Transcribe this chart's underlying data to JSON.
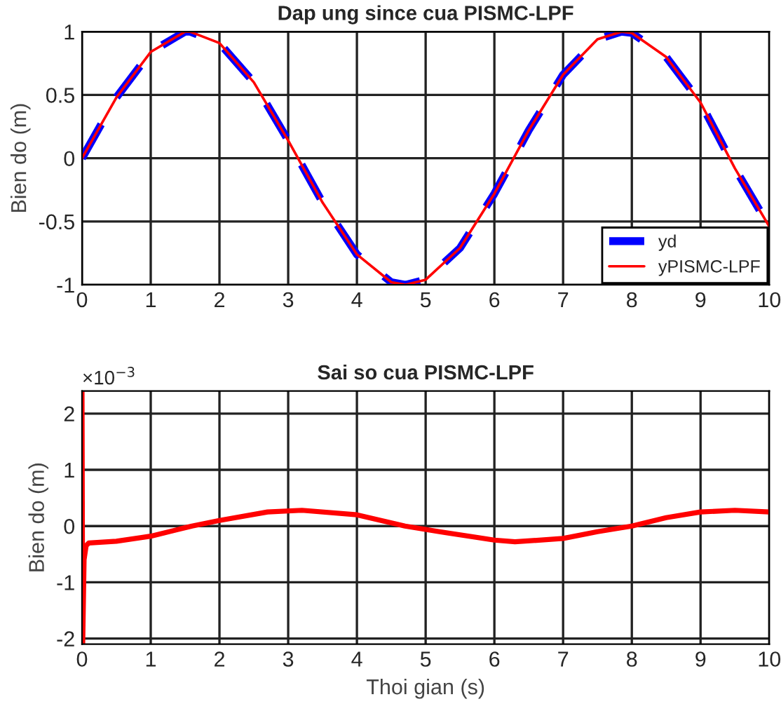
{
  "chart_data": [
    {
      "type": "line",
      "title": "Dap ung since cua PISMC-LPF",
      "ylabel": "Bien do (m)",
      "xlim": [
        0,
        10
      ],
      "ylim": [
        -1,
        1
      ],
      "xticks": [
        0,
        1,
        2,
        3,
        4,
        5,
        6,
        7,
        8,
        9,
        10
      ],
      "yticks": [
        -1,
        -0.5,
        0,
        0.5,
        1
      ],
      "grid": true,
      "legend": "bottom right",
      "series": [
        {
          "name": "yd",
          "color": "#0000ff",
          "line_style": "dashed",
          "x": [
            0,
            0.5,
            1,
            1.5,
            1.57,
            2,
            2.5,
            3,
            3.5,
            4,
            4.5,
            4.71,
            5,
            5.5,
            6,
            6.5,
            7,
            7.5,
            7.85,
            8,
            8.5,
            9,
            9.5,
            10
          ],
          "values": [
            0,
            0.48,
            0.84,
            1.0,
            1.0,
            0.91,
            0.6,
            0.14,
            -0.35,
            -0.76,
            -0.98,
            -1.0,
            -0.96,
            -0.71,
            -0.28,
            0.22,
            0.66,
            0.94,
            1.0,
            0.99,
            0.8,
            0.44,
            -0.08,
            -0.54
          ]
        },
        {
          "name": "yPISMC-LPF",
          "color": "#ff0000",
          "line_style": "solid",
          "x": [
            0,
            0.5,
            1,
            1.5,
            1.57,
            2,
            2.5,
            3,
            3.5,
            4,
            4.5,
            4.71,
            5,
            5.5,
            6,
            6.5,
            7,
            7.5,
            7.85,
            8,
            8.5,
            9,
            9.5,
            10
          ],
          "values": [
            0,
            0.48,
            0.84,
            1.0,
            1.0,
            0.91,
            0.6,
            0.14,
            -0.35,
            -0.76,
            -0.98,
            -1.0,
            -0.96,
            -0.71,
            -0.28,
            0.22,
            0.66,
            0.94,
            1.0,
            0.99,
            0.8,
            0.44,
            -0.08,
            -0.54
          ]
        }
      ]
    },
    {
      "type": "line",
      "title": "Sai so cua PISMC-LPF",
      "xlabel": "Thoi gian (s)",
      "ylabel": "Bien do (m)",
      "annotations": [
        "×10$^{−3}$"
      ],
      "xlim": [
        0,
        10
      ],
      "ylim": [
        -2.1,
        2.4
      ],
      "xticks": [
        0,
        1,
        2,
        3,
        4,
        5,
        6,
        7,
        8,
        9,
        10
      ],
      "yticks": [
        -2,
        -1,
        0,
        1,
        2
      ],
      "grid": true,
      "series": [
        {
          "color": "#ff0000",
          "line_style": "solid",
          "x": [
            0,
            0.005,
            0.01,
            0.03,
            0.06,
            0.1,
            0.5,
            1,
            1.6,
            2,
            2.7,
            3.2,
            4,
            4.7,
            5.2,
            6,
            6.3,
            7,
            7.5,
            8,
            8.5,
            9,
            9.5,
            10
          ],
          "values": [
            2.4,
            0,
            -2.1,
            -0.6,
            -0.35,
            -0.3,
            -0.27,
            -0.18,
            0,
            0.1,
            0.25,
            0.28,
            0.2,
            0,
            -0.1,
            -0.25,
            -0.28,
            -0.22,
            -0.1,
            0,
            0.15,
            0.25,
            0.28,
            0.25
          ]
        }
      ]
    }
  ]
}
